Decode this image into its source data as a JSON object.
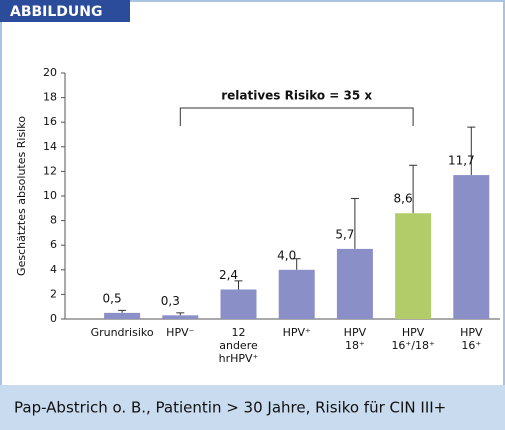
{
  "header": "ABBILDUNG",
  "caption": "Pap-Abstrich o. B., Patientin > 30 Jahre, Risiko für CIN III+",
  "chart_data": {
    "type": "bar",
    "ylabel": "Geschätztes absolutes Risiko",
    "annotation": "relatives Risiko = 35 x",
    "categories": [
      [
        "Grundrisiko"
      ],
      [
        "HPV⁻"
      ],
      [
        "12",
        "andere",
        "hrHPV⁺"
      ],
      [
        "HPV⁺"
      ],
      [
        "HPV",
        "18⁺"
      ],
      [
        "HPV",
        "16⁺/18⁺"
      ],
      [
        "HPV",
        "16⁺"
      ]
    ],
    "values": [
      0.5,
      0.3,
      2.4,
      4.0,
      5.7,
      8.6,
      11.7
    ],
    "value_labels": [
      "0,5",
      "0,3",
      "2,4",
      "4,0",
      "5,7",
      "8,6",
      "11,7"
    ],
    "errors": [
      0.2,
      0.2,
      0.7,
      0.9,
      4.1,
      3.9,
      3.9
    ],
    "colors": [
      "#8b8fc8",
      "#8b8fc8",
      "#8b8fc8",
      "#8b8fc8",
      "#8b8fc8",
      "#b3cc6a",
      "#8b8fc8"
    ],
    "ylim": [
      0,
      20
    ],
    "yticks": [
      0,
      2,
      4,
      6,
      8,
      10,
      12,
      14,
      16,
      18,
      20
    ]
  }
}
